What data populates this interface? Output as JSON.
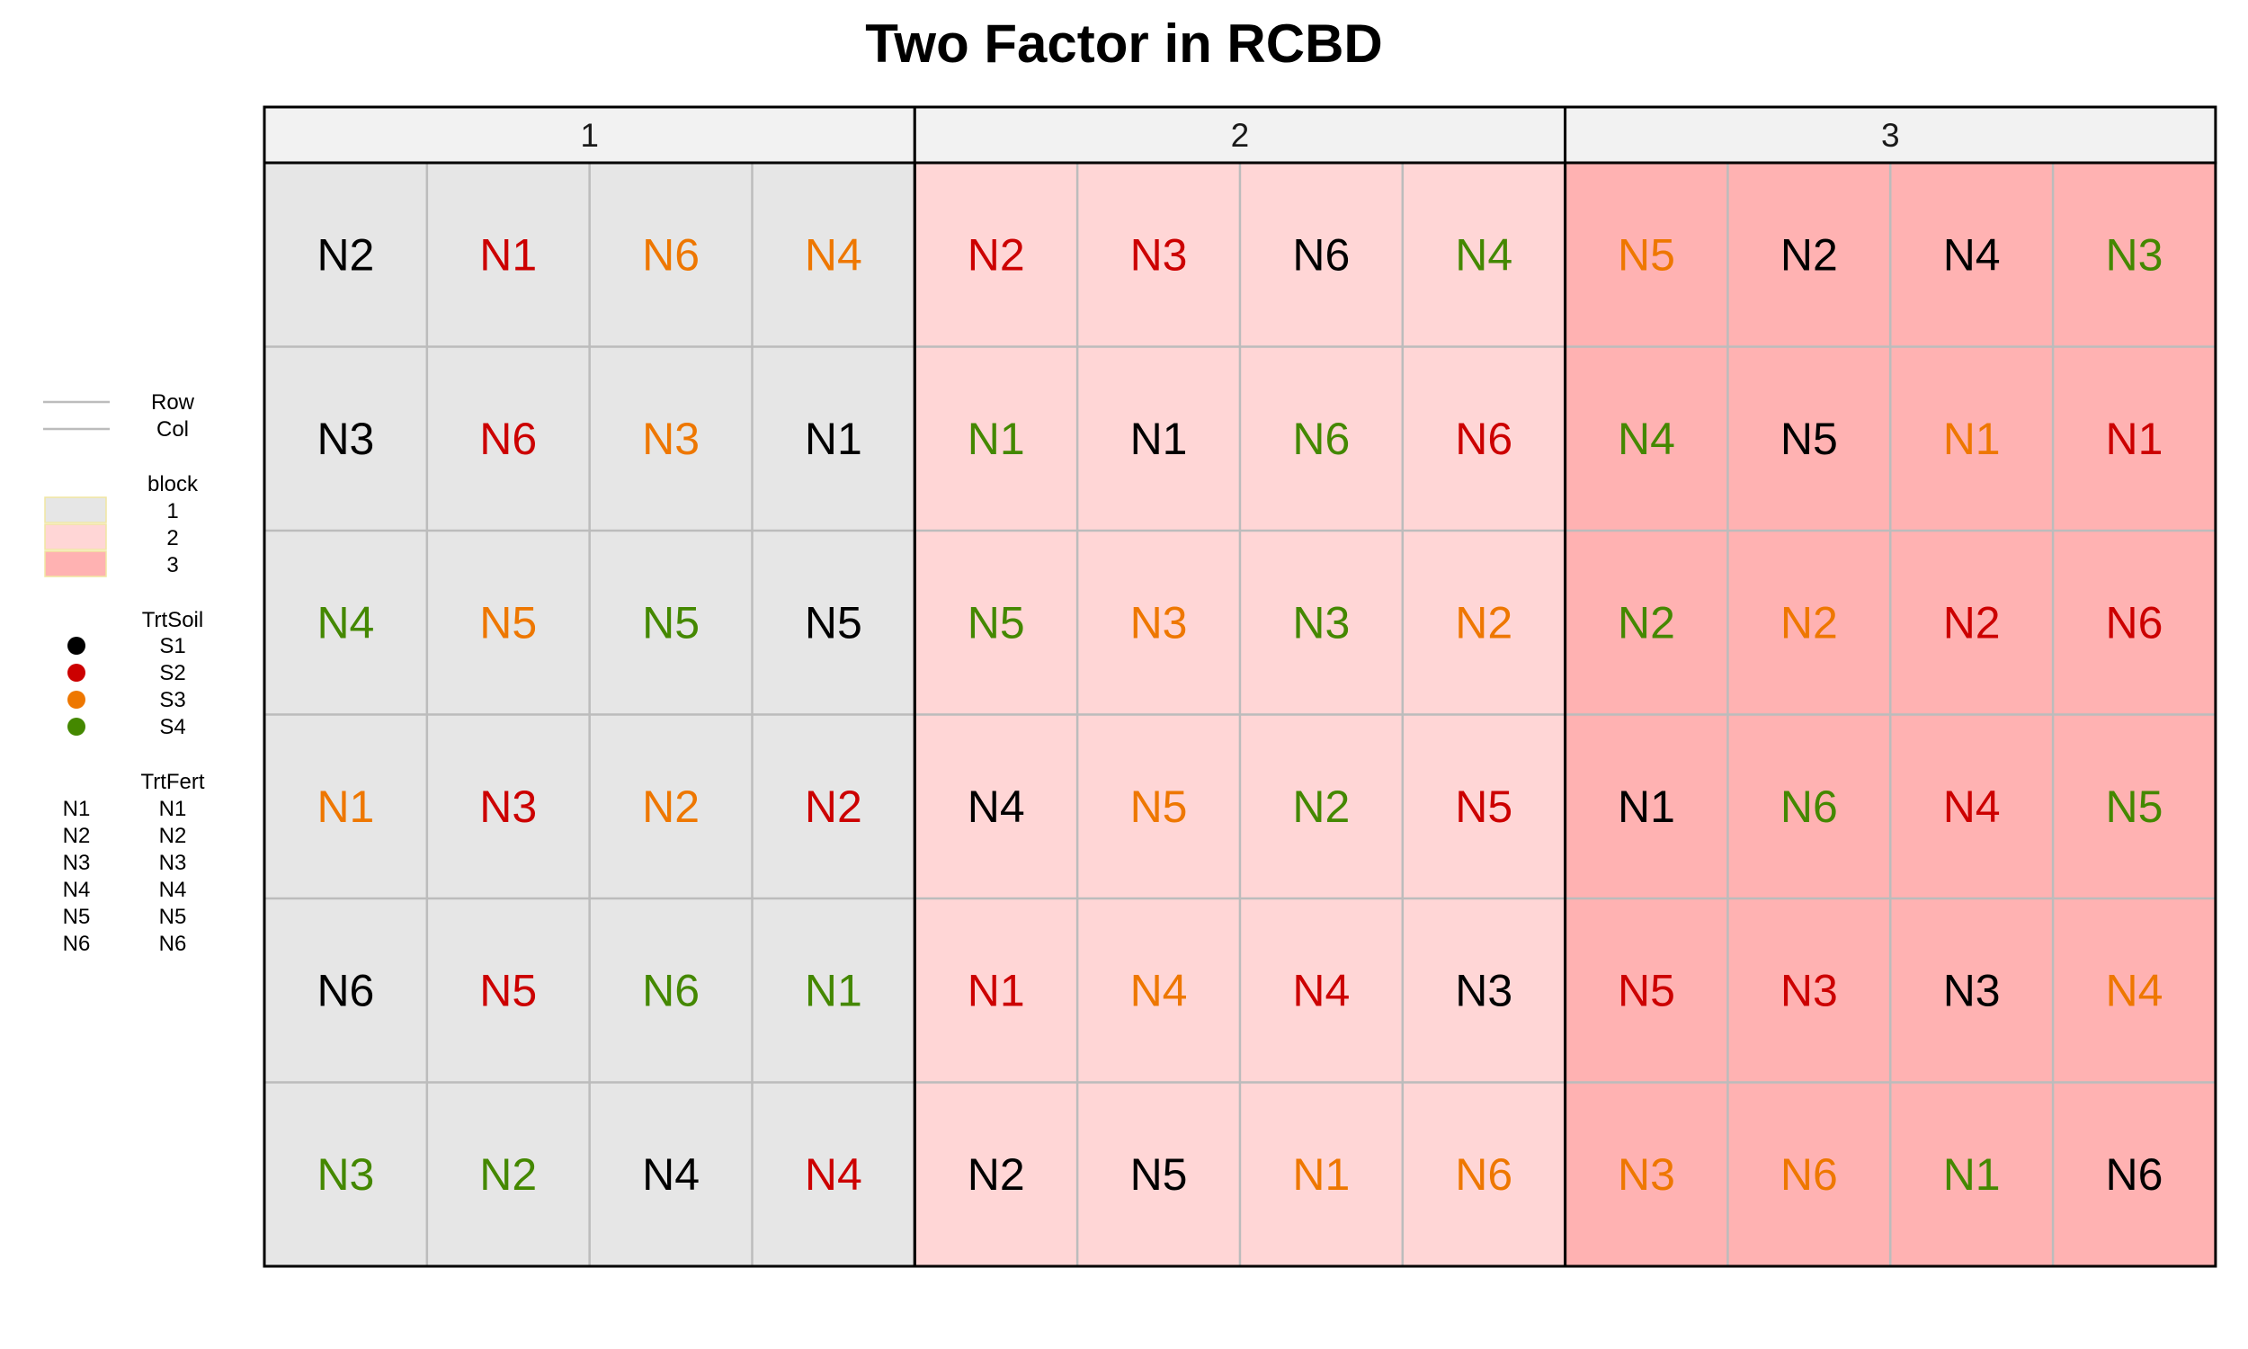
{
  "title": "Two Factor in RCBD",
  "colors": {
    "block_fill": {
      "1": "#e6e6e6",
      "2": "#ffd6d6",
      "3": "#ffb2b2"
    },
    "soil_color": {
      "S1": "#000000",
      "S2": "#cc0000",
      "S3": "#ee7700",
      "S4": "#448800"
    },
    "grid_line": "#bcbcbc",
    "border": "#000000",
    "strip_fill": "#f2f2f2"
  },
  "legend": {
    "lines": [
      "Row",
      "Col"
    ],
    "block_title": "block",
    "block_levels": [
      "1",
      "2",
      "3"
    ],
    "soil_title": "TrtSoil",
    "soil_levels": [
      "S1",
      "S2",
      "S3",
      "S4"
    ],
    "fert_title": "TrtFert",
    "fert_levels": [
      "N1",
      "N2",
      "N3",
      "N4",
      "N5",
      "N6"
    ]
  },
  "chart_data": {
    "type": "heatmap",
    "title": "Two Factor in RCBD",
    "facets": [
      "1",
      "2",
      "3"
    ],
    "rows": 6,
    "cols_per_facet": 4,
    "cells": [
      [
        [
          "N2",
          "S1"
        ],
        [
          "N1",
          "S2"
        ],
        [
          "N6",
          "S3"
        ],
        [
          "N4",
          "S3"
        ],
        [
          "N2",
          "S2"
        ],
        [
          "N3",
          "S2"
        ],
        [
          "N6",
          "S1"
        ],
        [
          "N4",
          "S4"
        ],
        [
          "N5",
          "S3"
        ],
        [
          "N2",
          "S1"
        ],
        [
          "N4",
          "S1"
        ],
        [
          "N3",
          "S4"
        ]
      ],
      [
        [
          "N3",
          "S1"
        ],
        [
          "N6",
          "S2"
        ],
        [
          "N3",
          "S3"
        ],
        [
          "N1",
          "S1"
        ],
        [
          "N1",
          "S4"
        ],
        [
          "N1",
          "S1"
        ],
        [
          "N6",
          "S4"
        ],
        [
          "N6",
          "S2"
        ],
        [
          "N4",
          "S4"
        ],
        [
          "N5",
          "S1"
        ],
        [
          "N1",
          "S3"
        ],
        [
          "N1",
          "S2"
        ]
      ],
      [
        [
          "N4",
          "S4"
        ],
        [
          "N5",
          "S3"
        ],
        [
          "N5",
          "S4"
        ],
        [
          "N5",
          "S1"
        ],
        [
          "N5",
          "S4"
        ],
        [
          "N3",
          "S3"
        ],
        [
          "N3",
          "S4"
        ],
        [
          "N2",
          "S3"
        ],
        [
          "N2",
          "S4"
        ],
        [
          "N2",
          "S3"
        ],
        [
          "N2",
          "S2"
        ],
        [
          "N6",
          "S2"
        ]
      ],
      [
        [
          "N1",
          "S3"
        ],
        [
          "N3",
          "S2"
        ],
        [
          "N2",
          "S3"
        ],
        [
          "N2",
          "S2"
        ],
        [
          "N4",
          "S1"
        ],
        [
          "N5",
          "S3"
        ],
        [
          "N2",
          "S4"
        ],
        [
          "N5",
          "S2"
        ],
        [
          "N1",
          "S1"
        ],
        [
          "N6",
          "S4"
        ],
        [
          "N4",
          "S2"
        ],
        [
          "N5",
          "S4"
        ]
      ],
      [
        [
          "N6",
          "S1"
        ],
        [
          "N5",
          "S2"
        ],
        [
          "N6",
          "S4"
        ],
        [
          "N1",
          "S4"
        ],
        [
          "N1",
          "S2"
        ],
        [
          "N4",
          "S3"
        ],
        [
          "N4",
          "S2"
        ],
        [
          "N3",
          "S1"
        ],
        [
          "N5",
          "S2"
        ],
        [
          "N3",
          "S2"
        ],
        [
          "N3",
          "S1"
        ],
        [
          "N4",
          "S3"
        ]
      ],
      [
        [
          "N3",
          "S4"
        ],
        [
          "N2",
          "S4"
        ],
        [
          "N4",
          "S1"
        ],
        [
          "N4",
          "S2"
        ],
        [
          "N2",
          "S1"
        ],
        [
          "N5",
          "S1"
        ],
        [
          "N1",
          "S3"
        ],
        [
          "N6",
          "S3"
        ],
        [
          "N3",
          "S3"
        ],
        [
          "N6",
          "S3"
        ],
        [
          "N1",
          "S4"
        ],
        [
          "N6",
          "S1"
        ]
      ]
    ]
  }
}
